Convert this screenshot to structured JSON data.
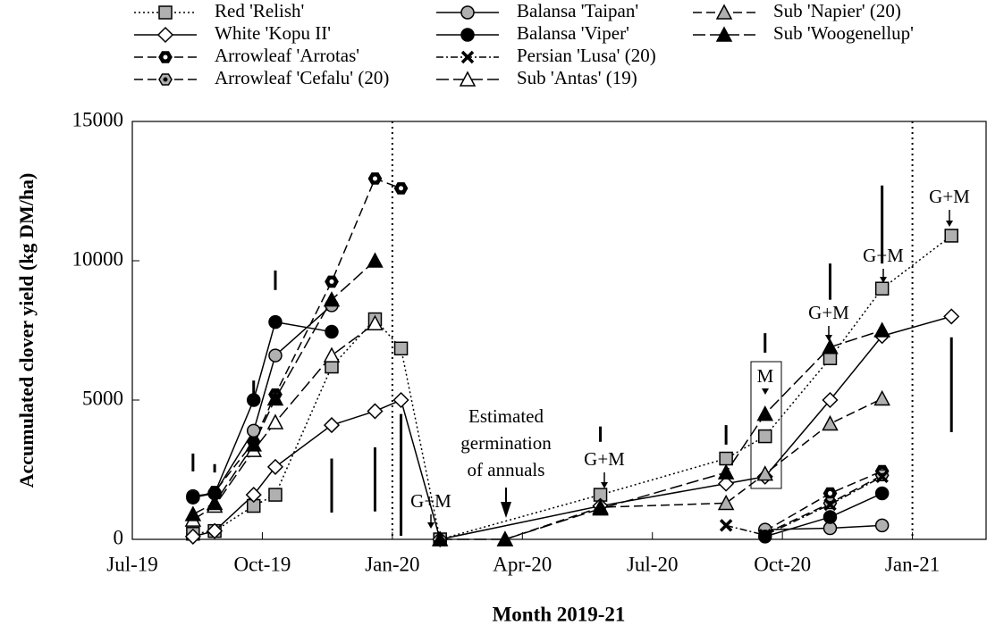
{
  "chart_data": {
    "type": "line",
    "y_label": "Accumulated clover yield (kg DM/ha)",
    "x_label": "Month 2019-21",
    "xlim": [
      0,
      19.7
    ],
    "xticks": [
      {
        "value": 0,
        "label": "Jul-19"
      },
      {
        "value": 3,
        "label": "Oct-19"
      },
      {
        "value": 6,
        "label": "Jan-20"
      },
      {
        "value": 9,
        "label": "Apr-20"
      },
      {
        "value": 12,
        "label": "Jul-20"
      },
      {
        "value": 15,
        "label": "Oct-20"
      },
      {
        "value": 18,
        "label": "Jan-21"
      }
    ],
    "ylim": [
      0,
      15000
    ],
    "yticks": [
      0,
      5000,
      10000,
      15000
    ],
    "vlines": [
      6,
      18
    ],
    "series": [
      {
        "name": "Red 'Relish'",
        "marker": "square",
        "fill": "#b0b0b0",
        "color": "#000",
        "dash": "2,3",
        "x": [
          1.4,
          1.9,
          2.8,
          3.3,
          4.6,
          5.6,
          6.2,
          7.1,
          10.8,
          13.7,
          14.6,
          16.1,
          17.3,
          18.9
        ],
        "values": [
          200,
          300,
          1200,
          1600,
          6200,
          7900,
          6850,
          0,
          1600,
          2900,
          3700,
          6500,
          9000,
          10900
        ]
      },
      {
        "name": "White 'Kopu II'",
        "marker": "diamond",
        "fill": "#fff",
        "color": "#000",
        "dash": "",
        "x": [
          1.4,
          1.9,
          2.8,
          3.3,
          4.6,
          5.6,
          6.2,
          7.1,
          10.8,
          13.7,
          14.6,
          16.1,
          17.3,
          18.9
        ],
        "values": [
          100,
          300,
          1600,
          2600,
          4100,
          4600,
          5000,
          0,
          1200,
          2000,
          2250,
          5000,
          7300,
          8000
        ]
      },
      {
        "name": "Arrowleaf 'Arrotas'",
        "marker": "hexagon",
        "fill": "#000",
        "color": "#000",
        "dash": "10,5",
        "x": [
          1.4,
          1.9,
          2.8,
          3.3,
          4.6,
          5.6,
          6.2,
          null,
          14.6,
          16.1,
          17.3
        ],
        "values": [
          1500,
          1700,
          3500,
          5200,
          9250,
          12950,
          12600,
          null,
          300,
          1650,
          2450
        ]
      },
      {
        "name": "Arrowleaf 'Cefalu' (20)",
        "marker": "hexagon",
        "fill": "#b0b0b0",
        "color": "#000",
        "dash": "10,5",
        "x": [
          14.6,
          16.1,
          17.3
        ],
        "values": [
          200,
          1300,
          2300
        ]
      },
      {
        "name": "Balansa 'Taipan'",
        "marker": "circle",
        "fill": "#b0b0b0",
        "color": "#000",
        "dash": "",
        "x": [
          1.4,
          1.9,
          2.8,
          3.3,
          4.6,
          null,
          14.6,
          16.1,
          17.3
        ],
        "values": [
          1550,
          1650,
          3900,
          6600,
          8400,
          null,
          350,
          400,
          500
        ]
      },
      {
        "name": "Balansa 'Viper'",
        "marker": "circle",
        "fill": "#000",
        "color": "#000",
        "dash": "",
        "x": [
          1.4,
          1.9,
          2.8,
          3.3,
          4.6,
          null,
          14.6,
          16.1,
          17.3
        ],
        "values": [
          1500,
          1650,
          5000,
          7800,
          7450,
          null,
          100,
          800,
          1650
        ]
      },
      {
        "name": "Persian 'Lusa' (20)",
        "marker": "x",
        "fill": "#000",
        "color": "#000",
        "dash": "8,3,2,3",
        "x": [
          13.7,
          14.6,
          16.1,
          17.3
        ],
        "values": [
          500,
          150,
          1250,
          2250
        ]
      },
      {
        "name": "Sub 'Antas' (19)",
        "marker": "triangle",
        "fill": "#fff",
        "color": "#000",
        "dash": "14,5",
        "x": [
          1.4,
          1.9,
          2.8,
          3.3,
          4.6,
          5.6
        ],
        "values": [
          700,
          1200,
          3200,
          4200,
          6600,
          7750
        ]
      },
      {
        "name": "Sub 'Napier' (20)",
        "marker": "triangle",
        "fill": "#b0b0b0",
        "color": "#000",
        "dash": "10,5",
        "x": [
          8.6,
          10.8,
          13.7,
          14.6,
          16.1,
          17.3
        ],
        "values": [
          0,
          1150,
          1300,
          2350,
          4150,
          5050
        ]
      },
      {
        "name": "Sub 'Woogenellup'",
        "marker": "triangle",
        "fill": "#000",
        "color": "#000",
        "dash": "14,5",
        "x": [
          1.4,
          1.9,
          2.8,
          3.3,
          4.6,
          5.6,
          null,
          7.1,
          8.6,
          10.8,
          13.7,
          14.6,
          16.1,
          17.3
        ],
        "values": [
          900,
          1300,
          3400,
          5050,
          8600,
          10000,
          null,
          0,
          0,
          1100,
          2400,
          4500,
          6900,
          7500
        ]
      }
    ],
    "lsd_bars": {
      "x": [
        1.4,
        1.9,
        2.8,
        3.3,
        4.6,
        5.6,
        6.2,
        10.8,
        13.7,
        14.6,
        16.1,
        17.3,
        18.9
      ],
      "low": [
        2440,
        2400,
        4900,
        8950,
        960,
        1000,
        130,
        3500,
        3400,
        6700,
        8600,
        9900,
        3850
      ],
      "high": [
        3080,
        2700,
        5700,
        9650,
        2900,
        3300,
        4500,
        4050,
        4100,
        7400,
        9900,
        12700,
        7250
      ]
    },
    "annotations": [
      {
        "text": "G+M"
      },
      {
        "text": [
          "Estimated",
          "germination",
          "of annuals"
        ]
      },
      {
        "text": "G+M"
      },
      {
        "text": "M"
      },
      {
        "text": "G+M"
      },
      {
        "text": "G+M"
      },
      {
        "text": "G+M"
      }
    ]
  }
}
